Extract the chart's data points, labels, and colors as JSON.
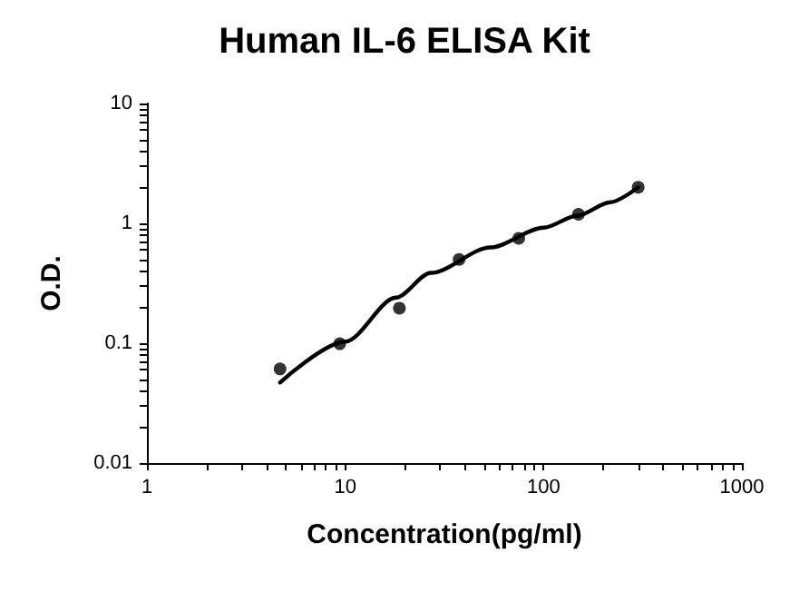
{
  "chart_data": {
    "type": "scatter",
    "title": "Human IL-6 ELISA Kit",
    "xlabel": "Concentration(pg/ml)",
    "ylabel": "O.D.",
    "log": "xy",
    "grid": false,
    "xlim": [
      1,
      1000
    ],
    "xticks": [
      1,
      10,
      100,
      1000
    ],
    "ylim": [
      0.01,
      10
    ],
    "yticks": [
      0.01,
      0.1,
      1,
      10
    ],
    "series": [
      {
        "marker": "circle",
        "color": "#000000",
        "x": [
          4.69,
          9.38,
          18.75,
          37.5,
          75,
          150,
          300
        ],
        "values": [
          0.061,
          0.099,
          0.196,
          0.5,
          0.75,
          1.19,
          2.0
        ]
      },
      {
        "type": "line",
        "marker": "none",
        "line_style": "solid",
        "color": "#000000",
        "x": [
          4.69,
          10,
          18,
          27,
          54,
          100,
          148,
          217,
          300
        ],
        "values": [
          0.047,
          0.103,
          0.24,
          0.386,
          0.63,
          0.92,
          1.16,
          1.5,
          2.0
        ]
      }
    ]
  }
}
